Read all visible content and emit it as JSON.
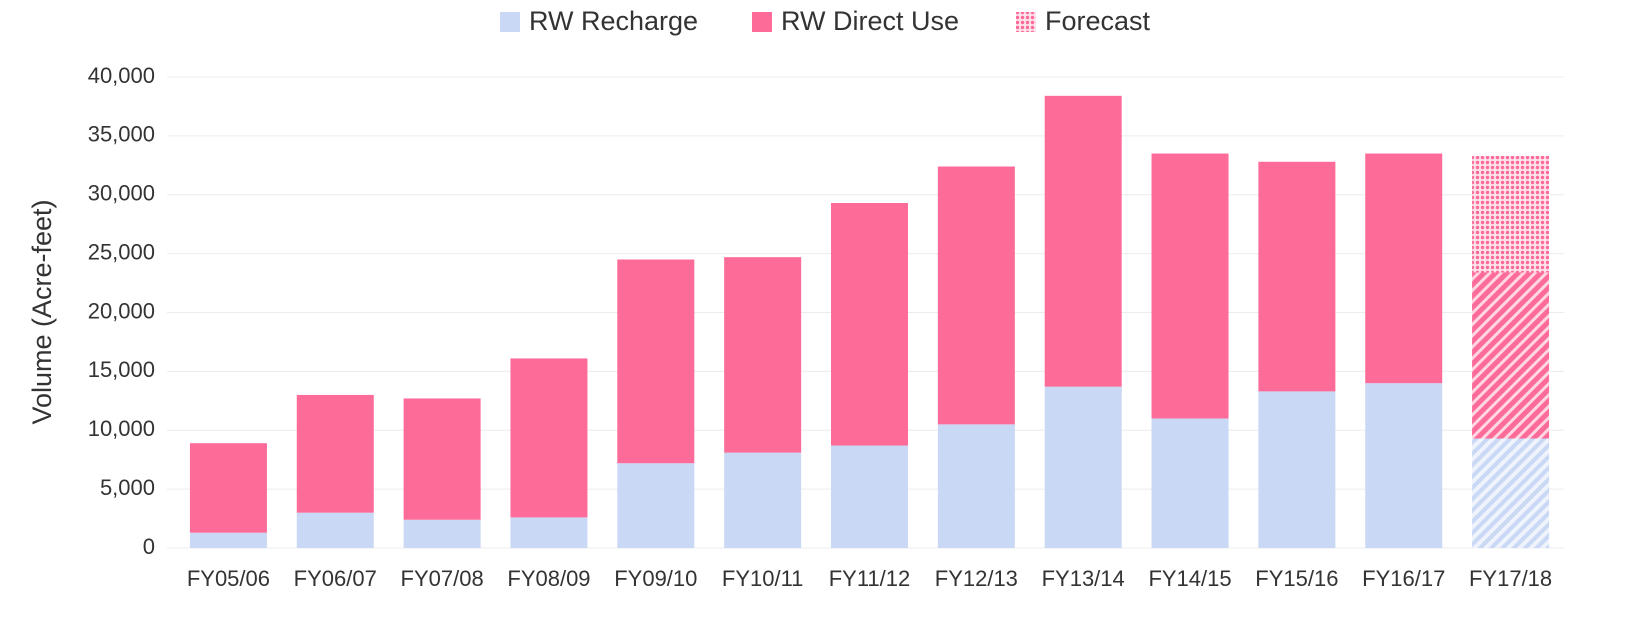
{
  "chart_data": {
    "type": "stacked_bar",
    "ylabel": "Volume (Acre-feet)",
    "categories": [
      "FY05/06",
      "FY06/07",
      "FY07/08",
      "FY08/09",
      "FY09/10",
      "FY10/11",
      "FY11/12",
      "FY12/13",
      "FY13/14",
      "FY14/15",
      "FY15/16",
      "FY16/17",
      "FY17/18"
    ],
    "series": [
      {
        "name": "RW Recharge",
        "color": "#c9d8f4",
        "values": [
          1300,
          3000,
          2400,
          2600,
          7200,
          8100,
          8700,
          10500,
          13700,
          11000,
          13300,
          14000,
          9300
        ]
      },
      {
        "name": "RW Direct Use",
        "color": "#fd6b99",
        "values": [
          7600,
          10000,
          10300,
          13500,
          17300,
          16600,
          20600,
          21900,
          24700,
          22500,
          19500,
          19500,
          14100
        ]
      },
      {
        "name": "Forecast",
        "color": "#fd6b99",
        "values": [
          null,
          null,
          null,
          null,
          null,
          null,
          null,
          null,
          null,
          null,
          null,
          null,
          9900
        ]
      }
    ],
    "ylim": [
      0,
      40000
    ],
    "yticks": [
      0,
      {
        "value": 5000,
        "label": "5,000"
      },
      {
        "value": 10000,
        "label": "10,000"
      },
      {
        "value": 15000,
        "label": "15,000"
      },
      {
        "value": 20000,
        "label": "20,000"
      },
      {
        "value": 25000,
        "label": "25,000"
      },
      {
        "value": 30000,
        "label": "30,000"
      },
      {
        "value": 35000,
        "label": "35,000"
      },
      {
        "value": 40000,
        "label": "40,000"
      }
    ],
    "grid": true,
    "legend": "top"
  }
}
